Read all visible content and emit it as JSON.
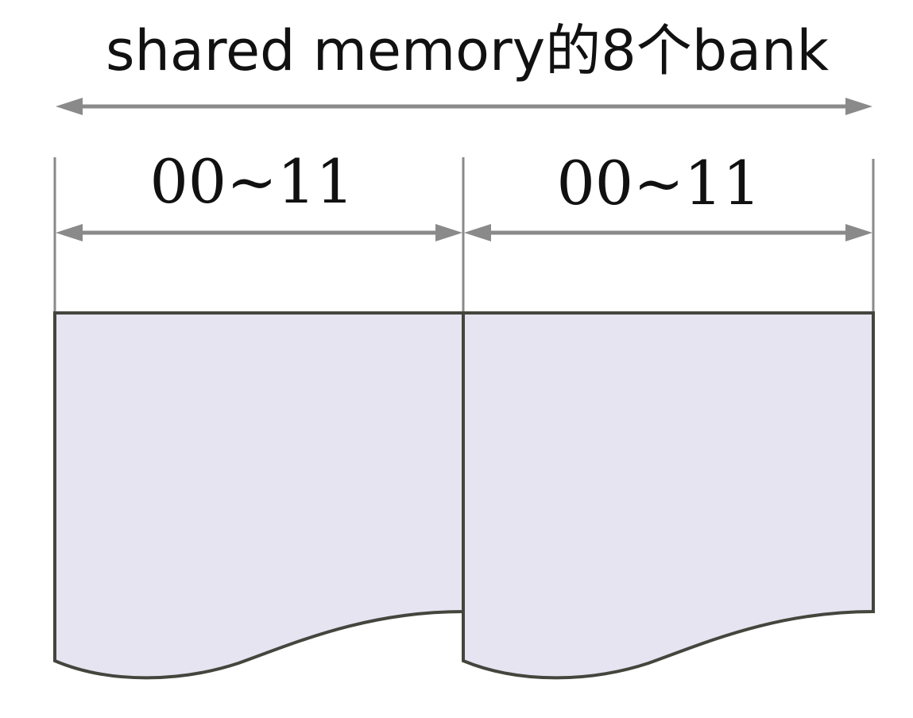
{
  "title": "shared memory的8个bank",
  "banks": [
    {
      "range_label": "00~11"
    },
    {
      "range_label": "00~11"
    }
  ],
  "colors": {
    "bank_fill": "#e6e4f1",
    "bank_stroke": "#44453d",
    "dimension_line": "#8a8a8a",
    "text": "#111111"
  }
}
